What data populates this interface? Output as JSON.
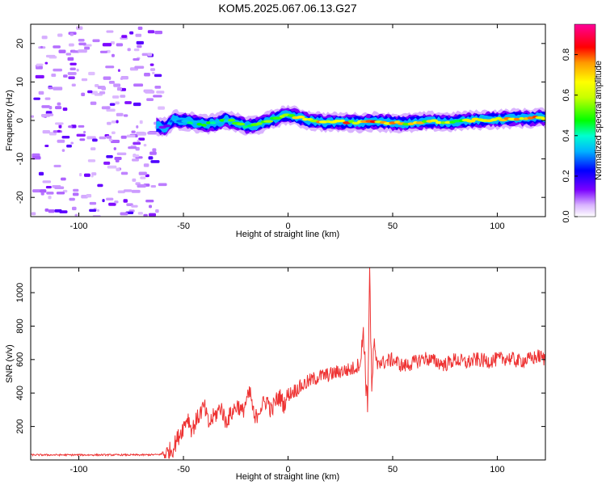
{
  "title": "KOM5.2025.067.06.13.G27",
  "colors": {
    "snr_line": "#ee3333",
    "axis": "#000000",
    "background": "#ffffff"
  },
  "chart_data": [
    {
      "type": "heatmap",
      "xlabel": "Height of straight line (km)",
      "ylabel": "Frequency (Hz)",
      "xlim": [
        -123,
        123
      ],
      "ylim": [
        -25,
        25
      ],
      "xticks": [
        -100,
        -50,
        0,
        50,
        100
      ],
      "yticks": [
        -20,
        -10,
        0,
        10,
        20
      ],
      "colorbar": {
        "label": "Normalized spectral amplitude",
        "range": [
          0,
          0.95
        ],
        "ticks": [
          0.0,
          0.2,
          0.4,
          0.6,
          0.8
        ],
        "colormap": "rainbow (white/purple-blue-cyan-green-yellow-orange-red-magenta)"
      },
      "ridge": {
        "x": [
          -63,
          -58,
          -55,
          -50,
          -45,
          -40,
          -35,
          -30,
          -25,
          -20,
          -15,
          -10,
          -5,
          0,
          5,
          10,
          15,
          20,
          25,
          30,
          35,
          40,
          45,
          50,
          55,
          60,
          65,
          70,
          75,
          80,
          85,
          90,
          95,
          100,
          105,
          110,
          115,
          120,
          123
        ],
        "frequency": [
          -1.5,
          -1.8,
          0.2,
          0.0,
          -0.5,
          -1.0,
          -0.8,
          0.2,
          -0.5,
          -1.5,
          -1.2,
          -0.3,
          0.8,
          1.5,
          0.8,
          0.0,
          -0.3,
          -0.5,
          -0.4,
          -0.5,
          -0.6,
          -0.3,
          -0.4,
          -0.6,
          -0.8,
          -0.6,
          -0.3,
          -0.2,
          -0.4,
          -0.3,
          0.0,
          0.1,
          0.2,
          0.3,
          0.4,
          0.6,
          0.5,
          0.8,
          0.5
        ],
        "amplitude": [
          0.1,
          0.2,
          0.3,
          0.35,
          0.4,
          0.45,
          0.4,
          0.45,
          0.5,
          0.45,
          0.5,
          0.55,
          0.6,
          0.65,
          0.7,
          0.75,
          0.7,
          0.75,
          0.7,
          0.75,
          0.7,
          0.75,
          0.7,
          0.72,
          0.65,
          0.7,
          0.65,
          0.6,
          0.65,
          0.6,
          0.6,
          0.65,
          0.7,
          0.7,
          0.72,
          0.7,
          0.75,
          0.7,
          0.7
        ]
      },
      "noise_region_x": [
        -123,
        -62
      ]
    },
    {
      "type": "line",
      "xlabel": "Height of straight line (km)",
      "ylabel": "SNR (v/v)",
      "xlim": [
        -123,
        123
      ],
      "ylim": [
        0,
        1150
      ],
      "xticks": [
        -100,
        -50,
        0,
        50,
        100
      ],
      "yticks": [
        200,
        400,
        600,
        800,
        1000
      ],
      "series": [
        {
          "x": [
            -123,
            -110,
            -100,
            -90,
            -80,
            -70,
            -62,
            -58,
            -55,
            -52,
            -50,
            -48,
            -46,
            -44,
            -42,
            -40,
            -38,
            -36,
            -34,
            -32,
            -30,
            -28,
            -26,
            -24,
            -22,
            -20,
            -18,
            -16,
            -14,
            -12,
            -10,
            -8,
            -6,
            -4,
            -2,
            0,
            5,
            10,
            15,
            20,
            25,
            30,
            33,
            35,
            36,
            37,
            38,
            39,
            40,
            41,
            42,
            43,
            45,
            50,
            55,
            60,
            65,
            70,
            75,
            80,
            85,
            90,
            95,
            100,
            105,
            110,
            115,
            120,
            123
          ],
          "values": [
            30,
            30,
            30,
            30,
            30,
            30,
            32,
            40,
            70,
            150,
            200,
            260,
            180,
            230,
            280,
            320,
            210,
            250,
            280,
            320,
            230,
            260,
            300,
            330,
            280,
            350,
            400,
            230,
            300,
            330,
            360,
            290,
            350,
            380,
            330,
            390,
            430,
            470,
            500,
            510,
            530,
            540,
            560,
            600,
            800,
            520,
            300,
            1150,
            380,
            700,
            540,
            600,
            580,
            600,
            560,
            580,
            610,
            590,
            570,
            600,
            580,
            600,
            590,
            600,
            610,
            590,
            600,
            620,
            600
          ]
        }
      ]
    }
  ]
}
